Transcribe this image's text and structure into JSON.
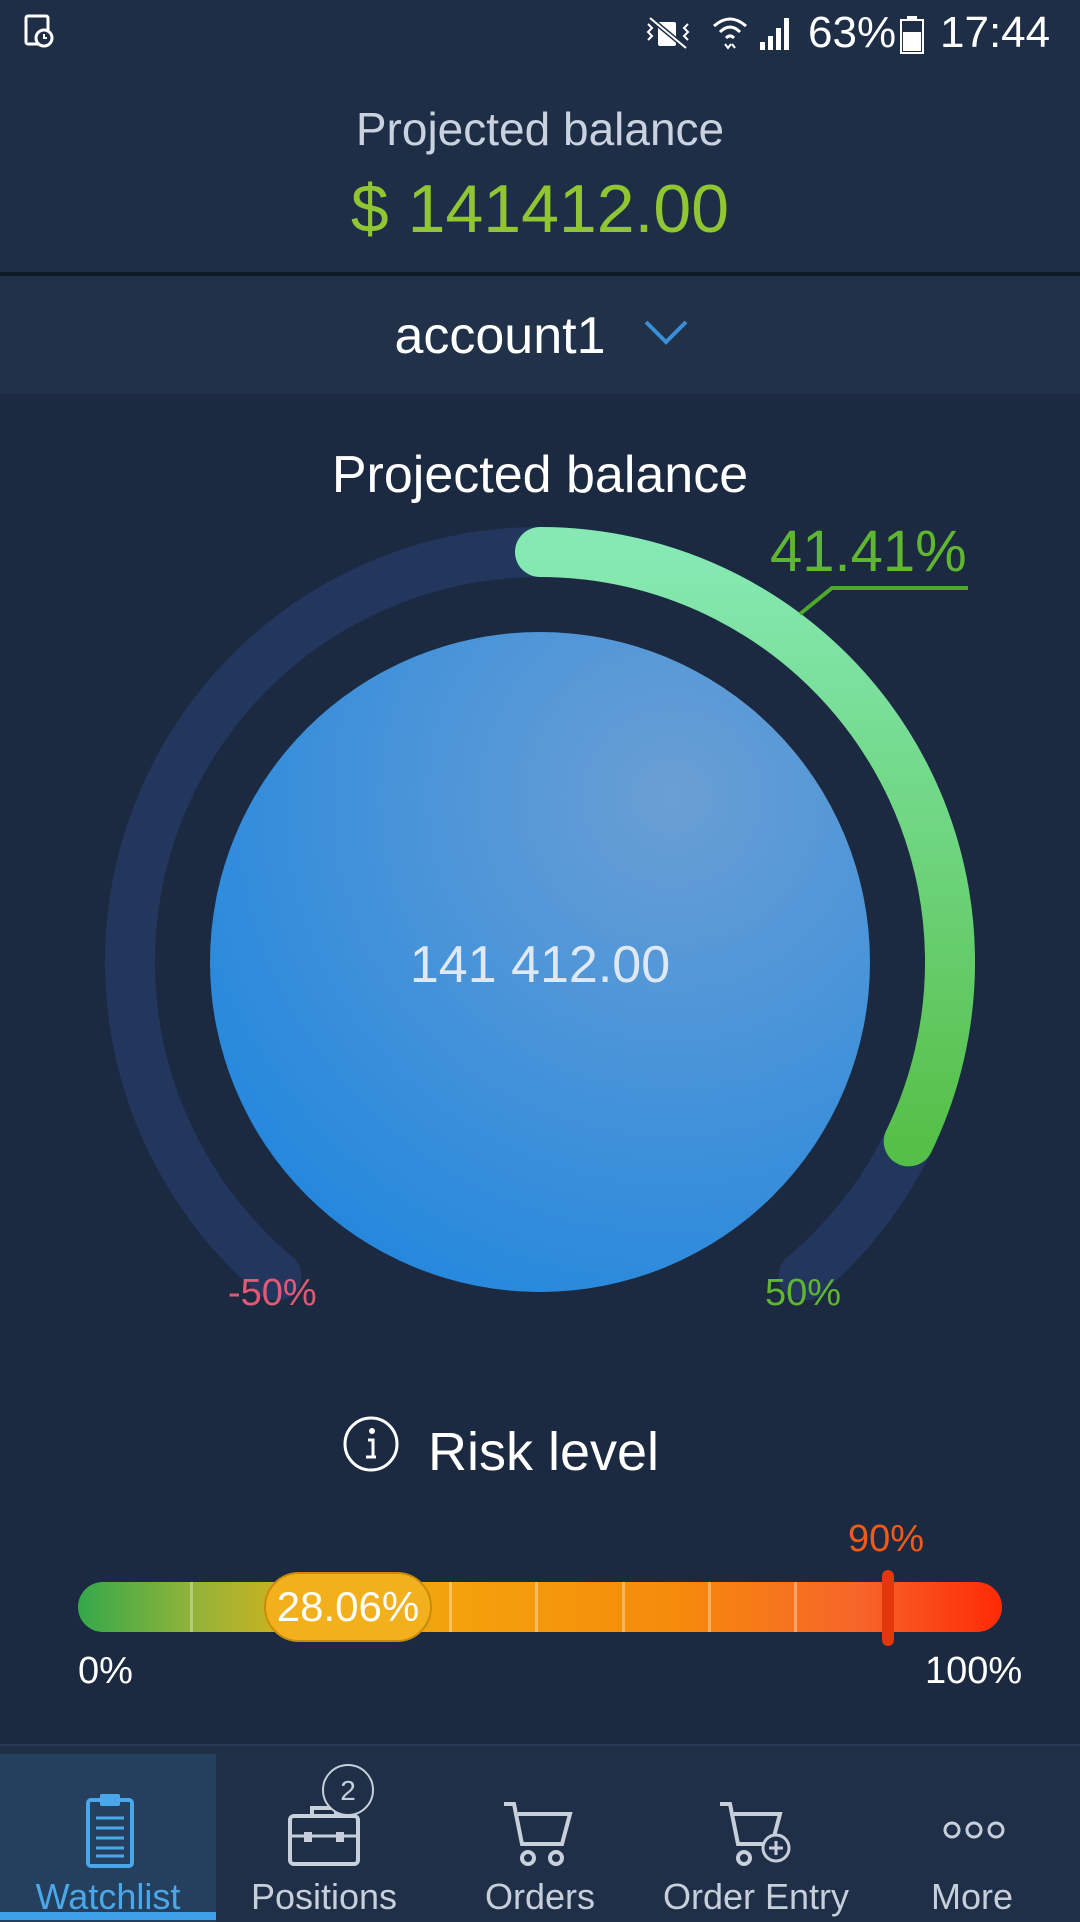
{
  "status_bar": {
    "battery": "63%",
    "time": "17:44"
  },
  "header": {
    "title": "Projected balance",
    "balance": "$ 141412.00"
  },
  "account": {
    "name": "account1"
  },
  "gauge": {
    "title": "Projected balance",
    "value": "141 412.00",
    "percent_label": "41.41%",
    "percent_value": 41.41,
    "min_label": "-50%",
    "max_label": "50%",
    "min": -50,
    "max": 50
  },
  "risk": {
    "title": "Risk level",
    "current_label": "28.06%",
    "current_value": 28.06,
    "threshold_label": "90%",
    "threshold_value": 90,
    "min_label": "0%",
    "max_label": "100%"
  },
  "nav": {
    "items": [
      {
        "label": "Watchlist",
        "icon": "clipboard-icon"
      },
      {
        "label": "Positions",
        "icon": "briefcase-icon",
        "badge": "2"
      },
      {
        "label": "Orders",
        "icon": "cart-icon"
      },
      {
        "label": "Order Entry",
        "icon": "cart-plus-icon"
      },
      {
        "label": "More",
        "icon": "more-icon"
      }
    ]
  },
  "colors": {
    "accent": "#3da0e8",
    "balance_green": "#8fc631",
    "positive": "#5fb630",
    "negative": "#e05a76",
    "risk_badge": "#f2b01c"
  }
}
